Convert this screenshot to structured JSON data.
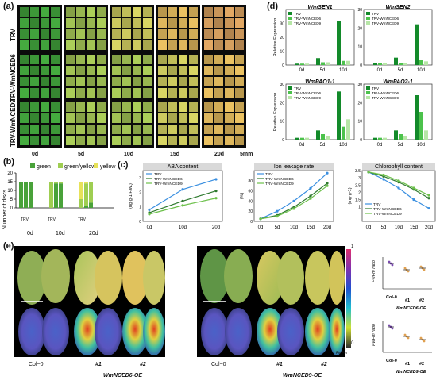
{
  "panel_letters": {
    "a": "(a)",
    "b": "(b)",
    "c": "(c)",
    "d": "(d)",
    "e": "(e)"
  },
  "panel_a": {
    "rows": [
      "TRV",
      "TRV-WmNCED6",
      "TRV-WmNCED9"
    ],
    "days": [
      "0d",
      "5d",
      "10d",
      "15d",
      "20d"
    ],
    "scale_bar": "5mm",
    "colors": [
      "#3f9d3a",
      "#9dbd52",
      "#c7c45c",
      "#d8b25a",
      "#cf9a5c"
    ]
  },
  "panel_b": {
    "ylabel": "Number of discs",
    "legend": [
      "green",
      "green/yellow",
      "yellow"
    ],
    "groups": [
      "0d",
      "10d",
      "20d"
    ],
    "bar_labels": [
      "TRV",
      "TRV-WmNCED6",
      "TRV-WmNCED9"
    ]
  },
  "panel_c": {
    "legend": [
      "TRV",
      "TRV-WmNCED6",
      "TRV-WmNCED9"
    ],
    "charts": [
      {
        "title": "ABA content",
        "ylabel": "(ng·g-1 F.W.)",
        "x": [
          "0d",
          "10d",
          "20d"
        ]
      },
      {
        "title": "Ion leakage rate",
        "ylabel": "(%)",
        "x": [
          "0d",
          "5d",
          "10d",
          "15d",
          "20d"
        ]
      },
      {
        "title": "Chlorophyll content",
        "ylabel": "(mg·g-1)",
        "x": [
          "0d",
          "5d",
          "10d",
          "15d",
          "20d"
        ]
      }
    ]
  },
  "panel_d": {
    "ylabel": "Relative Expression",
    "legend": [
      "TRV",
      "TRV-WmNCED6",
      "TRV-WmNCED9"
    ],
    "charts": [
      {
        "title": "WmSEN1",
        "x": [
          "0d",
          "5d",
          "10d"
        ]
      },
      {
        "title": "WmSEN2",
        "x": [
          "0d",
          "5d",
          "10d"
        ]
      },
      {
        "title": "WmPAO1-1",
        "x": [
          "0d",
          "5d",
          "10d"
        ]
      },
      {
        "title": "WmPAO2-1",
        "x": [
          "0d",
          "5d",
          "10d"
        ]
      }
    ]
  },
  "panel_e": {
    "left_labels": [
      "Col−0",
      "#1",
      "#2",
      "WmNCED6-OE"
    ],
    "right_labels": [
      "Col−0",
      "#1",
      "#2",
      "WmNCED9-OE"
    ],
    "colorbar_top": "1",
    "colorbar_bottom": "0",
    "colorbar_unit": "Fv/Fm",
    "scatter1_x": [
      "Col-0",
      "#1",
      "#2"
    ],
    "scatter1_ylabel": "Fv/Fm ratio",
    "scatter1_group": "WmNCED6-OE",
    "scatter2_x": [
      "Col-0",
      "#1",
      "#2"
    ],
    "scatter2_ylabel": "Fv/Fm ratio",
    "scatter2_group": "WmNCED9-OE"
  },
  "chart_data": [
    {
      "type": "bar",
      "title": "",
      "ylabel": "Number of discs",
      "categories": [
        "0d TRV",
        "0d TRV-WmNCED6",
        "0d TRV-WmNCED9",
        "10d TRV",
        "10d TRV-WmNCED6",
        "10d TRV-WmNCED9",
        "20d TRV",
        "20d TRV-WmNCED6",
        "20d TRV-WmNCED9"
      ],
      "series": [
        {
          "name": "green",
          "values": [
            15,
            15,
            15,
            0,
            14,
            14,
            0,
            1,
            3
          ]
        },
        {
          "name": "green/yellow",
          "values": [
            0,
            0,
            0,
            15,
            1,
            1,
            5,
            13,
            12
          ]
        },
        {
          "name": "yellow",
          "values": [
            0,
            0,
            0,
            0,
            0,
            0,
            10,
            1,
            0
          ]
        }
      ],
      "ylim": [
        0,
        20
      ]
    },
    {
      "type": "line",
      "title": "ABA content",
      "ylabel": "(ng·g-1 F.W.)",
      "x": [
        "0d",
        "10d",
        "20d"
      ],
      "series": [
        {
          "name": "TRV",
          "values": [
            0.8,
            2.2,
            2.9
          ]
        },
        {
          "name": "TRV-WmNCED6",
          "values": [
            0.6,
            1.4,
            2.1
          ]
        },
        {
          "name": "TRV-WmNCED9",
          "values": [
            0.5,
            1.1,
            1.6
          ]
        }
      ]
    },
    {
      "type": "line",
      "title": "Ion leakage rate",
      "ylabel": "(%)",
      "x": [
        "0d",
        "5d",
        "10d",
        "15d",
        "20d"
      ],
      "series": [
        {
          "name": "TRV",
          "values": [
            5,
            20,
            40,
            65,
            95
          ]
        },
        {
          "name": "TRV-WmNCED6",
          "values": [
            5,
            12,
            28,
            50,
            75
          ]
        },
        {
          "name": "TRV-WmNCED9",
          "values": [
            5,
            10,
            25,
            45,
            70
          ]
        }
      ]
    },
    {
      "type": "line",
      "title": "Chlorophyll content",
      "ylabel": "(mg·g-1)",
      "x": [
        "0d",
        "5d",
        "10d",
        "15d",
        "20d"
      ],
      "series": [
        {
          "name": "TRV",
          "values": [
            3.4,
            2.9,
            2.3,
            1.5,
            0.9
          ]
        },
        {
          "name": "TRV-WmNCED6",
          "values": [
            3.4,
            3.1,
            2.7,
            2.2,
            1.6
          ]
        },
        {
          "name": "TRV-WmNCED9",
          "values": [
            3.4,
            3.2,
            2.8,
            2.3,
            1.8
          ]
        }
      ]
    },
    {
      "type": "bar",
      "title": "WmSEN1",
      "ylabel": "Relative Expression",
      "categories": [
        "0d",
        "5d",
        "10d"
      ],
      "series": [
        {
          "name": "TRV",
          "values": [
            1,
            5,
            32
          ]
        },
        {
          "name": "TRV-WmNCED6",
          "values": [
            1,
            2,
            3
          ]
        },
        {
          "name": "TRV-WmNCED9",
          "values": [
            1,
            2,
            3
          ]
        }
      ]
    },
    {
      "type": "bar",
      "title": "WmSEN2",
      "ylabel": "Relative Expression",
      "categories": [
        "0d",
        "5d",
        "10d"
      ],
      "series": [
        {
          "name": "TRV",
          "values": [
            1,
            4,
            22
          ]
        },
        {
          "name": "TRV-WmNCED6",
          "values": [
            1,
            1,
            3
          ]
        },
        {
          "name": "TRV-WmNCED9",
          "values": [
            1,
            1,
            2
          ]
        }
      ]
    },
    {
      "type": "bar",
      "title": "WmPAO1-1",
      "ylabel": "Relative Expression",
      "categories": [
        "0d",
        "5d",
        "10d"
      ],
      "series": [
        {
          "name": "TRV",
          "values": [
            1,
            5,
            26
          ]
        },
        {
          "name": "TRV-WmNCED6",
          "values": [
            1,
            3,
            7
          ]
        },
        {
          "name": "TRV-WmNCED9",
          "values": [
            1,
            2,
            11
          ]
        }
      ]
    },
    {
      "type": "bar",
      "title": "WmPAO2-1",
      "ylabel": "Relative Expression",
      "categories": [
        "0d",
        "5d",
        "10d"
      ],
      "series": [
        {
          "name": "TRV",
          "values": [
            1,
            5,
            24
          ]
        },
        {
          "name": "TRV-WmNCED6",
          "values": [
            1,
            3,
            15
          ]
        },
        {
          "name": "TRV-WmNCED9",
          "values": [
            1,
            2,
            5
          ]
        }
      ]
    },
    {
      "type": "scatter",
      "title": "",
      "ylabel": "Fv/Fm ratio",
      "categories": [
        "Col-0",
        "#1",
        "#2"
      ],
      "values": [
        0.8,
        0.6,
        0.65
      ]
    },
    {
      "type": "scatter",
      "title": "",
      "ylabel": "Fv/Fm ratio",
      "categories": [
        "Col-0",
        "#1",
        "#2"
      ],
      "values": [
        0.8,
        0.5,
        0.4
      ]
    }
  ]
}
